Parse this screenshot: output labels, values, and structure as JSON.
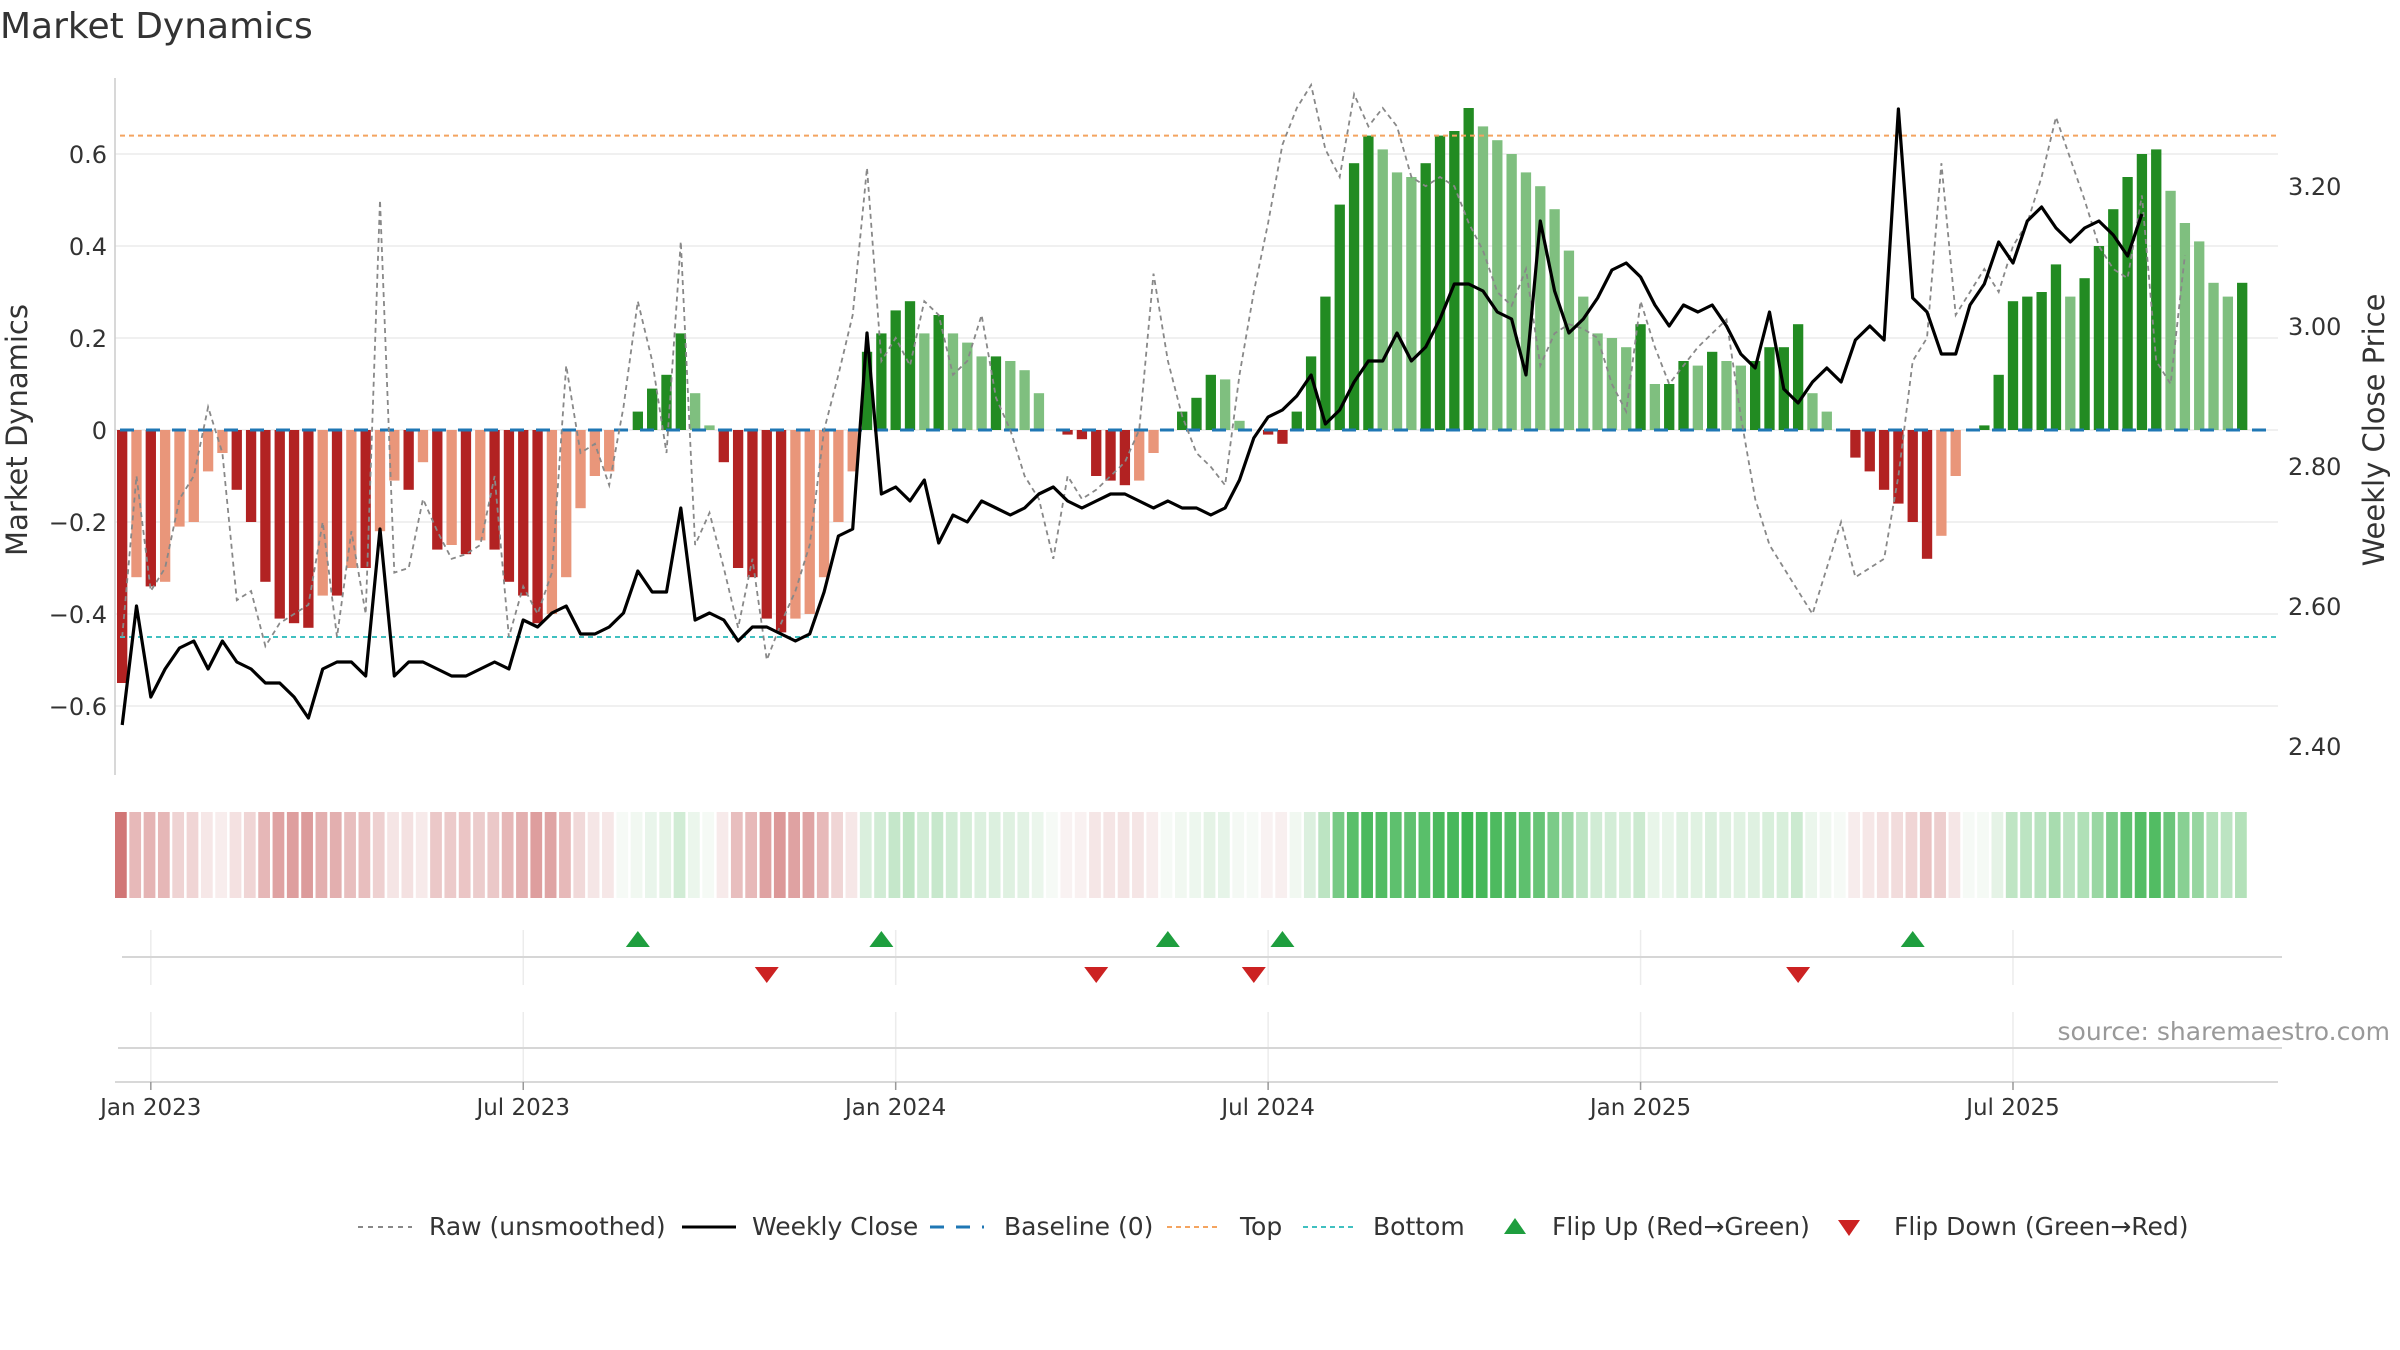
{
  "chart_data": {
    "type": "bar",
    "title": "Market Dynamics",
    "ylabel_left": "Market Dynamics",
    "ylabel_right": "Weekly Close Price",
    "ylim_left": [
      -0.75,
      0.75
    ],
    "ylim_right": [
      2.38,
      3.38
    ],
    "left_ticks": [
      "0.6",
      "0.4",
      "0.2",
      "0",
      "−0.2",
      "−0.4",
      "−0.6"
    ],
    "left_tick_values": [
      0.6,
      0.4,
      0.2,
      0,
      -0.2,
      -0.4,
      -0.6
    ],
    "right_ticks": [
      "3.20",
      "3.00",
      "2.80",
      "2.60",
      "2.40"
    ],
    "right_tick_values": [
      3.2,
      3.0,
      2.8,
      2.6,
      2.4
    ],
    "x_ticks": [
      "Jan 2023",
      "Jul 2023",
      "Jan 2024",
      "Jul 2024",
      "Jan 2025",
      "Jul 2025"
    ],
    "x_tick_weeks": [
      0,
      26,
      52,
      78,
      104,
      130
    ],
    "top_line": 0.64,
    "bottom_line": -0.45,
    "grid": true,
    "legend_position": "bottom",
    "source": "source: sharemaestro.com",
    "weeks_start_offset": -2,
    "market_dynamics": [
      -0.55,
      -0.32,
      -0.34,
      -0.33,
      -0.21,
      -0.2,
      -0.09,
      -0.05,
      -0.13,
      -0.2,
      -0.33,
      -0.41,
      -0.42,
      -0.43,
      -0.36,
      -0.36,
      -0.3,
      -0.3,
      -0.22,
      -0.11,
      -0.13,
      -0.07,
      -0.26,
      -0.25,
      -0.27,
      -0.24,
      -0.26,
      -0.33,
      -0.36,
      -0.42,
      -0.4,
      -0.32,
      -0.17,
      -0.1,
      -0.09,
      0.0,
      0.04,
      0.09,
      0.12,
      0.21,
      0.08,
      0.01,
      -0.07,
      -0.3,
      -0.32,
      -0.41,
      -0.44,
      -0.41,
      -0.4,
      -0.32,
      -0.2,
      -0.09,
      0.17,
      0.21,
      0.26,
      0.28,
      0.21,
      0.25,
      0.21,
      0.19,
      0.16,
      0.16,
      0.15,
      0.13,
      0.08,
      0.0,
      -0.01,
      -0.02,
      -0.1,
      -0.11,
      -0.12,
      -0.11,
      -0.05,
      0.0,
      0.04,
      0.07,
      0.12,
      0.11,
      0.02,
      0.0,
      -0.01,
      -0.03,
      0.04,
      0.16,
      0.29,
      0.49,
      0.58,
      0.64,
      0.61,
      0.56,
      0.55,
      0.58,
      0.64,
      0.65,
      0.7,
      0.66,
      0.63,
      0.6,
      0.56,
      0.53,
      0.48,
      0.39,
      0.29,
      0.21,
      0.2,
      0.18,
      0.23,
      0.1,
      0.1,
      0.15,
      0.14,
      0.17,
      0.15,
      0.14,
      0.15,
      0.18,
      0.18,
      0.23,
      0.08,
      0.04,
      0.0,
      -0.06,
      -0.09,
      -0.13,
      -0.16,
      -0.2,
      -0.28,
      -0.23,
      -0.1,
      0.0,
      0.01,
      0.12,
      0.28,
      0.29,
      0.3,
      0.36,
      0.29,
      0.33,
      0.4,
      0.48,
      0.55,
      0.6,
      0.61,
      0.52,
      0.45,
      0.41,
      0.32,
      0.29,
      0.32
    ],
    "raw_unsmoothed": [
      -0.45,
      -0.1,
      -0.35,
      -0.3,
      -0.15,
      -0.1,
      0.05,
      -0.05,
      -0.37,
      -0.35,
      -0.47,
      -0.42,
      -0.4,
      -0.38,
      -0.2,
      -0.45,
      -0.22,
      -0.4,
      0.5,
      -0.31,
      -0.3,
      -0.15,
      -0.22,
      -0.28,
      -0.27,
      -0.25,
      -0.1,
      -0.45,
      -0.34,
      -0.4,
      -0.31,
      0.14,
      -0.05,
      -0.03,
      -0.12,
      0.05,
      0.28,
      0.15,
      -0.05,
      0.41,
      -0.25,
      -0.18,
      -0.3,
      -0.43,
      -0.28,
      -0.5,
      -0.42,
      -0.35,
      -0.25,
      0.0,
      0.12,
      0.25,
      0.57,
      0.15,
      0.2,
      0.14,
      0.28,
      0.25,
      0.12,
      0.15,
      0.25,
      0.07,
      0.0,
      -0.1,
      -0.15,
      -0.28,
      -0.1,
      -0.15,
      -0.13,
      -0.1,
      -0.07,
      0.0,
      0.34,
      0.15,
      0.03,
      -0.05,
      -0.08,
      -0.12,
      0.12,
      0.3,
      0.45,
      0.62,
      0.7,
      0.75,
      0.61,
      0.55,
      0.73,
      0.66,
      0.7,
      0.66,
      0.55,
      0.53,
      0.55,
      0.53,
      0.45,
      0.39,
      0.3,
      0.27,
      0.35,
      0.14,
      0.21,
      0.23,
      0.22,
      0.2,
      0.1,
      0.04,
      0.28,
      0.18,
      0.1,
      0.14,
      0.18,
      0.21,
      0.24,
      0.03,
      -0.15,
      -0.25,
      -0.3,
      -0.35,
      -0.4,
      -0.3,
      -0.2,
      -0.32,
      -0.3,
      -0.28,
      -0.1,
      0.15,
      0.2,
      0.58,
      0.25,
      0.3,
      0.35,
      0.3,
      0.4,
      0.45,
      0.55,
      0.68,
      0.59,
      0.5,
      0.4,
      0.35,
      0.33,
      0.51,
      0.15,
      0.1,
      0.38
    ],
    "weekly_close": [
      2.43,
      2.6,
      2.47,
      2.51,
      2.54,
      2.55,
      2.51,
      2.55,
      2.52,
      2.51,
      2.49,
      2.49,
      2.47,
      2.44,
      2.51,
      2.52,
      2.52,
      2.5,
      2.71,
      2.5,
      2.52,
      2.52,
      2.51,
      2.5,
      2.5,
      2.51,
      2.52,
      2.51,
      2.58,
      2.57,
      2.59,
      2.6,
      2.56,
      2.56,
      2.57,
      2.59,
      2.65,
      2.62,
      2.62,
      2.74,
      2.58,
      2.59,
      2.58,
      2.55,
      2.57,
      2.57,
      2.56,
      2.55,
      2.56,
      2.62,
      2.7,
      2.71,
      2.99,
      2.76,
      2.77,
      2.75,
      2.78,
      2.69,
      2.73,
      2.72,
      2.75,
      2.74,
      2.73,
      2.74,
      2.76,
      2.77,
      2.75,
      2.74,
      2.75,
      2.76,
      2.76,
      2.75,
      2.74,
      2.75,
      2.74,
      2.74,
      2.73,
      2.74,
      2.78,
      2.84,
      2.87,
      2.88,
      2.9,
      2.93,
      2.86,
      2.88,
      2.92,
      2.95,
      2.95,
      2.99,
      2.95,
      2.97,
      3.01,
      3.06,
      3.06,
      3.05,
      3.02,
      3.01,
      2.93,
      3.15,
      3.05,
      2.99,
      3.01,
      3.04,
      3.08,
      3.09,
      3.07,
      3.03,
      3.0,
      3.03,
      3.02,
      3.03,
      3.0,
      2.96,
      2.94,
      3.02,
      2.91,
      2.89,
      2.92,
      2.94,
      2.92,
      2.98,
      3.0,
      2.98,
      3.31,
      3.04,
      3.02,
      2.96,
      2.96,
      3.03,
      3.06,
      3.12,
      3.09,
      3.15,
      3.17,
      3.14,
      3.12,
      3.14,
      3.15,
      3.13,
      3.1,
      3.16
    ],
    "flip_up_weeks": [
      36,
      53,
      73,
      81,
      125
    ],
    "flip_down_weeks": [
      45,
      68,
      79,
      117
    ],
    "colors": {
      "strong_red": "#b22222",
      "light_red": "#e9967a",
      "strong_green": "#228b22",
      "light_green": "#7fbf7f",
      "raw_line": "#888888",
      "close_line": "#000000",
      "baseline": "#1f77b4",
      "top": "#f4a460",
      "bottom": "#40c0c0",
      "flip_up": "#1e9e3e",
      "flip_down": "#cc2222",
      "grid": "#e8e8e8"
    }
  },
  "legend": {
    "raw": "Raw (unsmoothed)",
    "close": "Weekly Close",
    "baseline": "Baseline (0)",
    "top": "Top",
    "bottom": "Bottom",
    "flip_up": "Flip Up (Red→Green)",
    "flip_down": "Flip Down (Green→Red)"
  }
}
